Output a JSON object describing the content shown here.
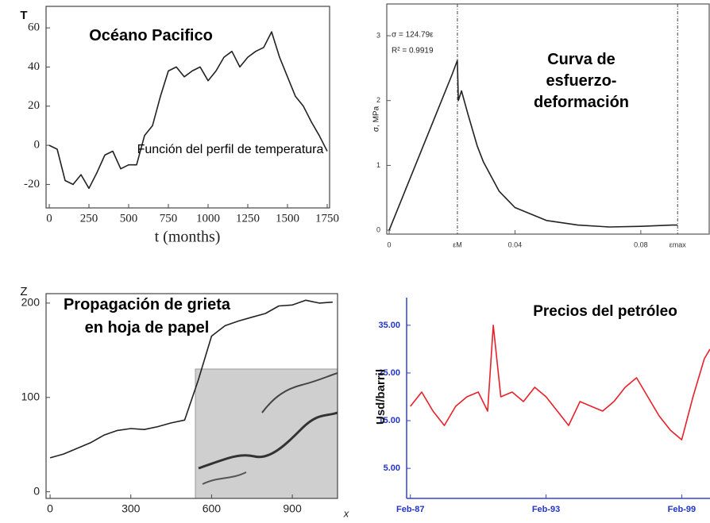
{
  "chart_data": [
    {
      "type": "line",
      "title": "Océano Pacifico",
      "annotation": "Función del perfil de temperatura",
      "ylabel": "T",
      "xlabel": "t (months)",
      "x": [
        0,
        50,
        100,
        150,
        200,
        250,
        300,
        350,
        400,
        450,
        500,
        550,
        600,
        650,
        700,
        750,
        800,
        850,
        900,
        950,
        1000,
        1050,
        1100,
        1150,
        1200,
        1250,
        1300,
        1350,
        1400,
        1450,
        1500,
        1550,
        1600,
        1650,
        1700,
        1750
      ],
      "series": [
        {
          "color": "#222222",
          "values": [
            0,
            -2,
            -18,
            -20,
            -15,
            -22,
            -14,
            -5,
            -3,
            -12,
            -10,
            -10,
            5,
            10,
            25,
            38,
            40,
            35,
            38,
            40,
            33,
            38,
            45,
            48,
            40,
            45,
            48,
            50,
            58,
            45,
            35,
            25,
            20,
            12,
            5,
            -3
          ]
        }
      ],
      "xlim": [
        0,
        1750
      ],
      "xticks": [
        0,
        250,
        500,
        750,
        1000,
        1250,
        1500,
        1750
      ],
      "ylim": [
        -32,
        71
      ],
      "yticks": [
        -20,
        0,
        20,
        40,
        60
      ]
    },
    {
      "type": "line",
      "title": "Curva de esfuerzo-deformación",
      "annotations": [
        "σ = 124.79ε",
        "R² = 0.9919"
      ],
      "ylabel": "σ, MPa",
      "x": [
        0,
        0.005,
        0.01,
        0.015,
        0.02,
        0.0217,
        0.022,
        0.023,
        0.025,
        0.028,
        0.03,
        0.035,
        0.04,
        0.05,
        0.06,
        0.07,
        0.08,
        0.09,
        0.0917
      ],
      "series": [
        {
          "color": "#222222",
          "values": [
            0,
            0.6,
            1.2,
            1.8,
            2.4,
            2.62,
            2.0,
            2.15,
            1.8,
            1.3,
            1.05,
            0.6,
            0.35,
            0.15,
            0.08,
            0.05,
            0.06,
            0.08,
            0.08
          ]
        }
      ],
      "xlim": [
        0,
        0.102
      ],
      "xticks": [
        0,
        {
          "value": 0.0217,
          "label": "εM"
        },
        0.04,
        0.08,
        {
          "value": 0.0917,
          "label": "εmax"
        }
      ],
      "ylim": [
        -0.06,
        3.49
      ],
      "yticks": [
        0,
        1,
        2,
        3
      ]
    },
    {
      "type": "line",
      "title": "Propagación de grieta en hoja de papel",
      "ylabel": "Z",
      "xlabel": "x",
      "x": [
        0,
        50,
        100,
        150,
        200,
        250,
        300,
        350,
        400,
        450,
        500,
        550,
        600,
        650,
        700,
        750,
        800,
        850,
        900,
        950,
        1000,
        1050
      ],
      "series": [
        {
          "color": "#222222",
          "values": [
            36,
            40,
            46,
            52,
            60,
            65,
            67,
            66,
            69,
            73,
            76,
            118,
            165,
            176,
            181,
            185,
            189,
            197,
            198,
            203,
            200,
            201
          ]
        }
      ],
      "xlim": [
        -15,
        1068
      ],
      "xticks": [
        0,
        300,
        600,
        900
      ],
      "ylim": [
        -7,
        210
      ],
      "yticks": [
        0,
        100,
        200
      ]
    },
    {
      "type": "line",
      "title": "Precios del petróleo",
      "ylabel": "Usd/barril",
      "x": [
        "1987-02",
        "1987-08",
        "1988-02",
        "1988-08",
        "1989-02",
        "1989-08",
        "1990-02",
        "1990-07",
        "1990-10",
        "1991-02",
        "1991-08",
        "1992-02",
        "1992-08",
        "1993-02",
        "1993-08",
        "1994-02",
        "1994-08",
        "1995-02",
        "1995-08",
        "1996-02",
        "1996-08",
        "1997-02",
        "1997-08",
        "1998-02",
        "1998-08",
        "1999-02",
        "1999-08",
        "2000-02",
        "2000-05"
      ],
      "series": [
        {
          "color": "#e8202a",
          "values": [
            18,
            21,
            17,
            14,
            18,
            20,
            21,
            17,
            35,
            20,
            21,
            19,
            22,
            20,
            17,
            14,
            19,
            18,
            17,
            19,
            22,
            24,
            20,
            16,
            13,
            11,
            20,
            28,
            30
          ]
        }
      ],
      "xlim": [
        "1986-12",
        "2000-05"
      ],
      "xticks": [
        {
          "value": "1987-02",
          "label": "Feb-87"
        },
        {
          "value": "1993-02",
          "label": "Feb-93"
        },
        {
          "value": "1999-02",
          "label": "Feb-99"
        }
      ],
      "ylim": [
        -1.3,
        40.8
      ],
      "yticks": [
        {
          "value": 5,
          "label": "5.00"
        },
        {
          "value": 15,
          "label": "15.00"
        },
        {
          "value": 25,
          "label": "25.00"
        },
        {
          "value": 35,
          "label": "35.00"
        }
      ]
    }
  ]
}
